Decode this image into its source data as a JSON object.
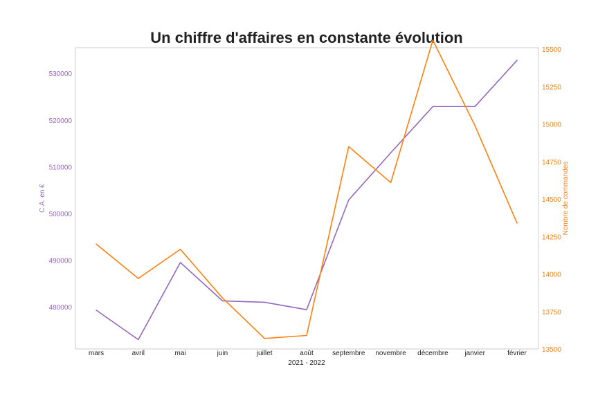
{
  "chart_data": {
    "type": "line",
    "title": "Un chiffre d'affaires en constante évolution",
    "xlabel": "2021 - 2022",
    "categories": [
      "mars",
      "avril",
      "mai",
      "juin",
      "juillet",
      "août",
      "septembre",
      "novembre",
      "décembre",
      "janvier",
      "février"
    ],
    "y_left": {
      "label": "C.A. en €",
      "ticks": [
        "480000",
        "490000",
        "500000",
        "510000",
        "520000",
        "530000"
      ],
      "range": [
        471000,
        535500
      ],
      "color": "#9467bd"
    },
    "y_right": {
      "label": "Nombre de commandes",
      "ticks": [
        "13500",
        "13750",
        "14000",
        "14250",
        "14500",
        "14750",
        "15000",
        "15250",
        "15500"
      ],
      "range": [
        13500,
        15510
      ],
      "color": "#ff7f0e"
    },
    "series": [
      {
        "axis": "left",
        "color": "#9467bd",
        "values": [
          479300,
          473000,
          489500,
          481300,
          481000,
          479400,
          502900,
          513000,
          522900,
          522900,
          532800
        ]
      },
      {
        "axis": "right",
        "color": "#ff7f0e",
        "values": [
          14200,
          13970,
          14165,
          13840,
          13570,
          13590,
          14850,
          14610,
          15560,
          14990,
          14340
        ]
      }
    ],
    "grid": false,
    "legend": "none"
  }
}
